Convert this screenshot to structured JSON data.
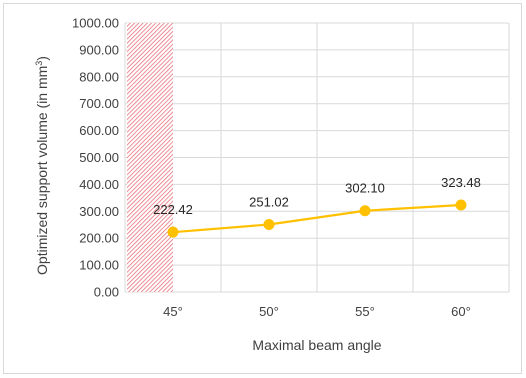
{
  "chart_data": {
    "type": "line",
    "categories": [
      "45°",
      "50°",
      "55°",
      "60°"
    ],
    "values": [
      222.42,
      251.02,
      302.1,
      323.48
    ],
    "data_labels": [
      "222.42",
      "251.02",
      "302.10",
      "323.48"
    ],
    "xlabel": "Maximal beam angle",
    "ylabel_main": "Optimized support volume (in mm",
    "ylabel_sup": "3",
    "ylabel_end": ")",
    "ylim": [
      0,
      1000
    ],
    "yticks": [
      0,
      100,
      200,
      300,
      400,
      500,
      600,
      700,
      800,
      900,
      1000
    ],
    "ytick_labels": [
      "0.00",
      "100.00",
      "200.00",
      "300.00",
      "400.00",
      "500.00",
      "600.00",
      "700.00",
      "800.00",
      "900.00",
      "1000.00"
    ],
    "grid": true,
    "legend": "none",
    "hatched_region": "45°",
    "colors": {
      "series": "#FFC000",
      "hatch": "#E8707A",
      "grid": "#d9d9d9",
      "text": "#404040"
    }
  }
}
